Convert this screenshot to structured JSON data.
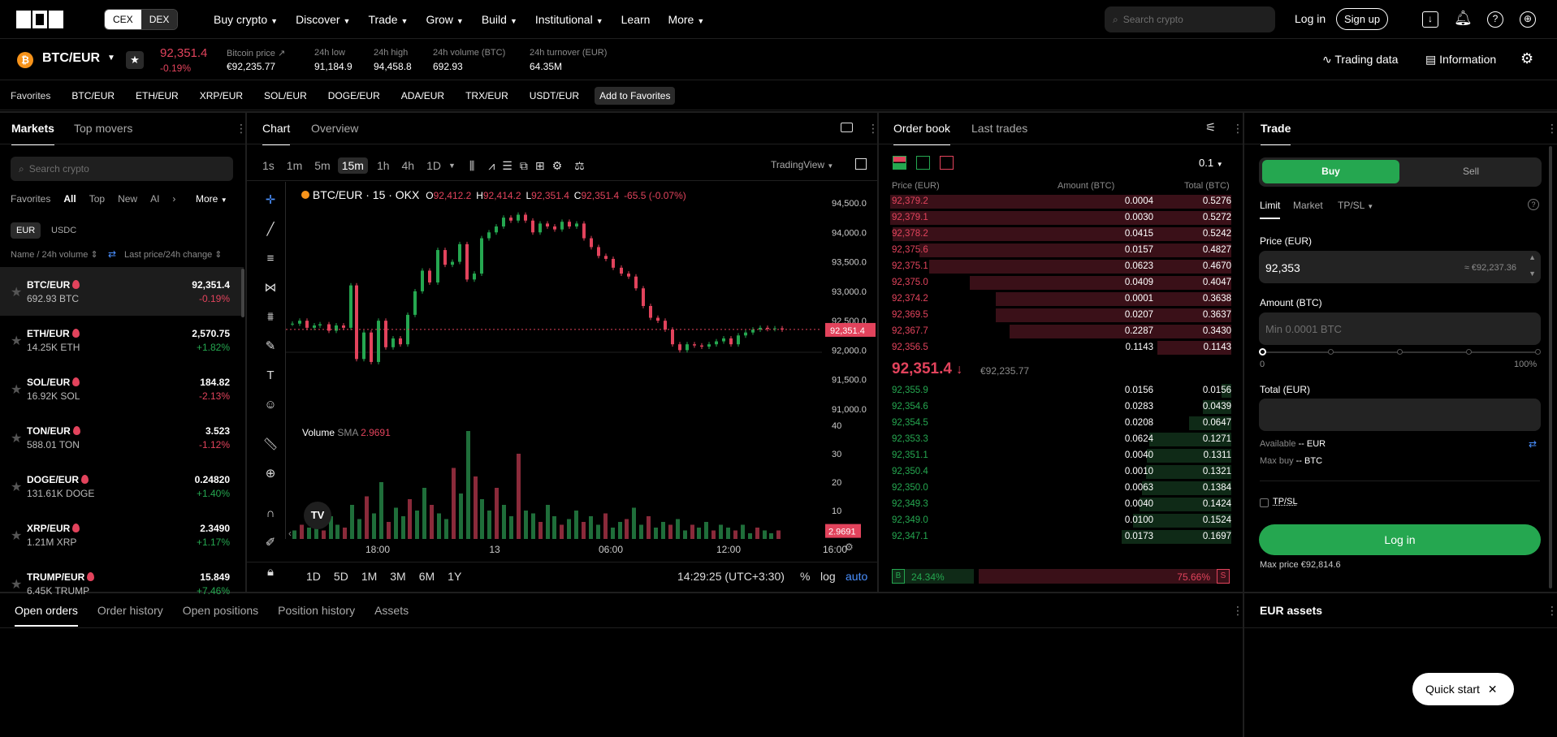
{
  "nav": {
    "cex": "CEX",
    "dex": "DEX",
    "links": [
      "Buy crypto",
      "Discover",
      "Trade",
      "Grow",
      "Build",
      "Institutional",
      "Learn",
      "More"
    ],
    "search_placeholder": "Search crypto",
    "login": "Log in",
    "signup": "Sign up"
  },
  "ticker": {
    "pair": "BTC/EUR",
    "price": "92,351.4",
    "change": "-0.19%",
    "btc_price_label": "Bitcoin price",
    "btc_price": "€92,235.77",
    "low_label": "24h low",
    "low": "91,184.9",
    "high_label": "24h high",
    "high": "94,458.8",
    "vol_label": "24h volume (BTC)",
    "vol": "692.93",
    "turnover_label": "24h turnover (EUR)",
    "turnover": "64.35M",
    "trading_data": "Trading data",
    "information": "Information"
  },
  "favbar": {
    "label": "Favorites",
    "items": [
      "BTC/EUR",
      "ETH/EUR",
      "XRP/EUR",
      "SOL/EUR",
      "DOGE/EUR",
      "ADA/EUR",
      "TRX/EUR",
      "USDT/EUR"
    ],
    "add": "Add to Favorites"
  },
  "markets": {
    "tab_markets": "Markets",
    "tab_movers": "Top movers",
    "search_placeholder": "Search crypto",
    "filters": [
      "Favorites",
      "All",
      "Top",
      "New",
      "AI"
    ],
    "more": "More",
    "quote_eur": "EUR",
    "quote_usdc": "USDC",
    "sort_name": "Name / 24h volume",
    "sort_price": "Last price/24h change",
    "rows": [
      {
        "name": "BTC/EUR",
        "vol": "692.93 BTC",
        "price": "92,351.4",
        "chg": "-0.19%",
        "up": false
      },
      {
        "name": "ETH/EUR",
        "vol": "14.25K ETH",
        "price": "2,570.75",
        "chg": "+1.82%",
        "up": true
      },
      {
        "name": "SOL/EUR",
        "vol": "16.92K SOL",
        "price": "184.82",
        "chg": "-2.13%",
        "up": false
      },
      {
        "name": "TON/EUR",
        "vol": "588.01 TON",
        "price": "3.523",
        "chg": "-1.12%",
        "up": false
      },
      {
        "name": "DOGE/EUR",
        "vol": "131.61K DOGE",
        "price": "0.24820",
        "chg": "+1.40%",
        "up": true
      },
      {
        "name": "XRP/EUR",
        "vol": "1.21M XRP",
        "price": "2.3490",
        "chg": "+1.17%",
        "up": true
      },
      {
        "name": "TRUMP/EUR",
        "vol": "6.45K TRUMP",
        "price": "15.849",
        "chg": "+7.46%",
        "up": true
      }
    ]
  },
  "chart": {
    "tab_chart": "Chart",
    "tab_overview": "Overview",
    "intervals": [
      "1s",
      "1m",
      "5m",
      "15m",
      "1h",
      "4h",
      "1D"
    ],
    "tradingview": "TradingView",
    "legend_title": "BTC/EUR · 15 · OKX",
    "o": "92,412.2",
    "h": "92,414.2",
    "l": "92,351.4",
    "c": "92,351.4",
    "chg": "-65.5 (-0.07%)",
    "price_axis": [
      "94,500.0",
      "94,000.0",
      "93,500.0",
      "93,000.0",
      "92,500.0",
      "92,000.0",
      "91,500.0",
      "91,000.0"
    ],
    "last_price": "92,351.4",
    "vol_label": "Volume",
    "sma_label": "SMA",
    "sma_value": "2.9691",
    "vol_axis": [
      "40",
      "30",
      "20",
      "10"
    ],
    "vol_last": "2.9691",
    "time_axis": [
      "18:00",
      "13",
      "06:00",
      "12:00",
      "16:00"
    ],
    "ranges": [
      "1D",
      "5D",
      "1M",
      "3M",
      "6M",
      "1Y"
    ],
    "clock": "14:29:25 (UTC+3:30)",
    "pct": "%",
    "log": "log",
    "auto": "auto"
  },
  "orderbook": {
    "tab_book": "Order book",
    "tab_trades": "Last trades",
    "tick": "0.1",
    "col_price": "Price (EUR)",
    "col_amount": "Amount (BTC)",
    "col_total": "Total (BTC)",
    "asks": [
      [
        "92,379.2",
        "0.0004",
        "0.5276"
      ],
      [
        "92,379.1",
        "0.0030",
        "0.5272"
      ],
      [
        "92,378.2",
        "0.0415",
        "0.5242"
      ],
      [
        "92,375.6",
        "0.0157",
        "0.4827"
      ],
      [
        "92,375.1",
        "0.0623",
        "0.4670"
      ],
      [
        "92,375.0",
        "0.0409",
        "0.4047"
      ],
      [
        "92,374.2",
        "0.0001",
        "0.3638"
      ],
      [
        "92,369.5",
        "0.0207",
        "0.3637"
      ],
      [
        "92,367.7",
        "0.2287",
        "0.3430"
      ],
      [
        "92,356.5",
        "0.1143",
        "0.1143"
      ]
    ],
    "mid": "92,351.4",
    "mid_fiat": "€92,235.77",
    "bids": [
      [
        "92,355.9",
        "0.0156",
        "0.0156"
      ],
      [
        "92,354.6",
        "0.0283",
        "0.0439"
      ],
      [
        "92,354.5",
        "0.0208",
        "0.0647"
      ],
      [
        "92,353.3",
        "0.0624",
        "0.1271"
      ],
      [
        "92,351.1",
        "0.0040",
        "0.1311"
      ],
      [
        "92,350.4",
        "0.0010",
        "0.1321"
      ],
      [
        "92,350.0",
        "0.0063",
        "0.1384"
      ],
      [
        "92,349.3",
        "0.0040",
        "0.1424"
      ],
      [
        "92,349.0",
        "0.0100",
        "0.1524"
      ],
      [
        "92,347.1",
        "0.0173",
        "0.1697"
      ]
    ],
    "b": "B",
    "s": "S",
    "buy_pct": "24.34%",
    "sell_pct": "75.66%",
    "buy_ratio": 0.2434
  },
  "trade": {
    "title": "Trade",
    "buy": "Buy",
    "sell": "Sell",
    "limit": "Limit",
    "market": "Market",
    "tpsl_tab": "TP/SL",
    "price_label": "Price (EUR)",
    "price": "92,353",
    "price_fiat": "≈ €92,237.36",
    "amount_label": "Amount (BTC)",
    "amount_placeholder": "Min 0.0001 BTC",
    "slider_min": "0",
    "slider_max": "100%",
    "total_label": "Total (EUR)",
    "available": "Available",
    "available_val": "-- EUR",
    "maxbuy": "Max buy",
    "maxbuy_val": "-- BTC",
    "tpsl": "TP/SL",
    "login": "Log in",
    "max_price": "Max price €92,814.6"
  },
  "bottom": {
    "tabs": [
      "Open orders",
      "Order history",
      "Open positions",
      "Position history",
      "Assets"
    ],
    "eur_assets": "EUR assets",
    "quick_start": "Quick start"
  },
  "colors": {
    "green": "#25a750",
    "red": "#e2435c",
    "brand": "#f7931a"
  }
}
